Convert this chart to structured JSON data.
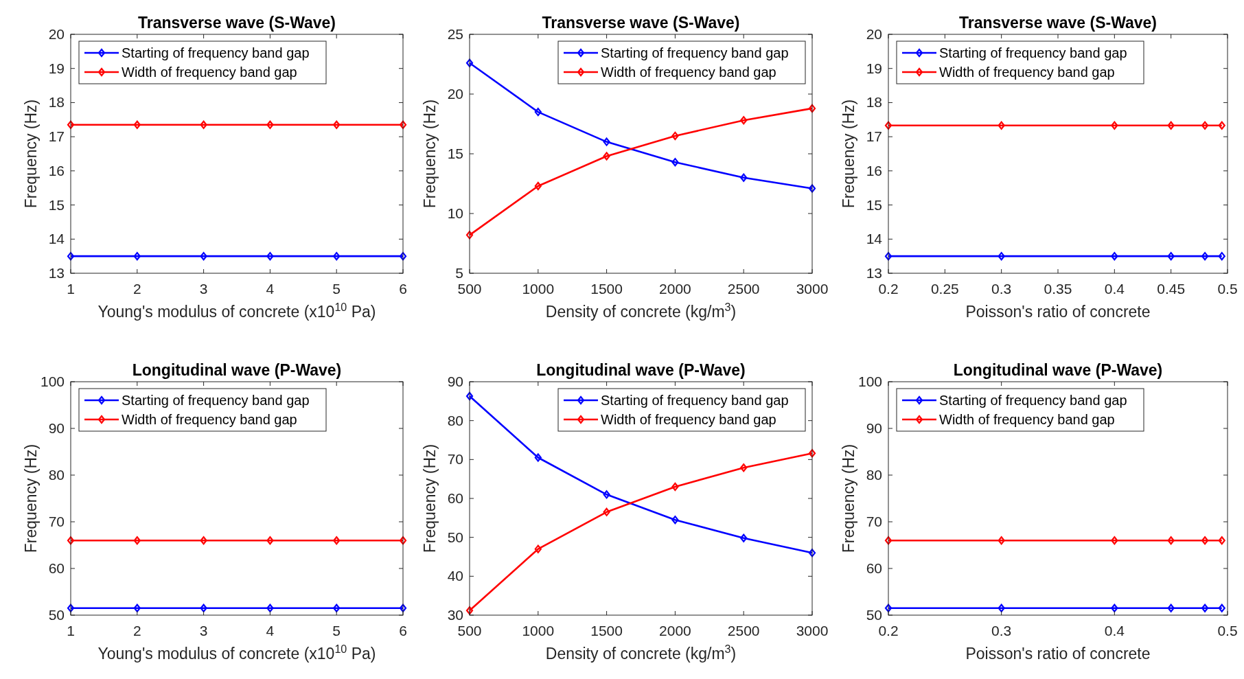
{
  "chart_data": [
    {
      "type": "line",
      "title": "Transverse wave (S-Wave)",
      "xlabel": "Young's modulus of concrete (x10$^{10}$ Pa)",
      "ylabel": "Frequency (Hz)",
      "x": [
        1,
        2,
        3,
        4,
        5,
        6
      ],
      "xlim": [
        1,
        6
      ],
      "xticks": [
        1,
        2,
        3,
        4,
        5,
        6
      ],
      "ylim": [
        13,
        20
      ],
      "yticks": [
        13,
        14,
        15,
        16,
        17,
        18,
        19,
        20
      ],
      "marker": "diamond",
      "grid": false,
      "legend": "top left",
      "series": [
        {
          "name": "Starting of frequency band gap",
          "color": "#0000ff",
          "values": [
            13.5,
            13.5,
            13.5,
            13.5,
            13.5,
            13.5
          ]
        },
        {
          "name": "Width of frequency band gap",
          "color": "#ff0000",
          "values": [
            17.35,
            17.35,
            17.35,
            17.35,
            17.35,
            17.35
          ]
        }
      ]
    },
    {
      "type": "line",
      "title": "Transverse wave (S-Wave)",
      "xlabel": "Density of concrete (kg/m$^{3}$)",
      "ylabel": "Frequency (Hz)",
      "x": [
        500,
        1000,
        1500,
        2000,
        2500,
        3000
      ],
      "xlim": [
        500,
        3000
      ],
      "xticks": [
        500,
        1000,
        1500,
        2000,
        2500,
        3000
      ],
      "ylim": [
        5,
        25
      ],
      "yticks": [
        5,
        10,
        15,
        20,
        25
      ],
      "marker": "diamond",
      "grid": false,
      "legend": "top right",
      "series": [
        {
          "name": "Starting of frequency band gap",
          "color": "#0000ff",
          "values": [
            22.6,
            18.5,
            16.0,
            14.3,
            13.0,
            12.1
          ]
        },
        {
          "name": "Width of frequency band gap",
          "color": "#ff0000",
          "values": [
            8.2,
            12.3,
            14.8,
            16.5,
            17.8,
            18.8
          ]
        }
      ]
    },
    {
      "type": "line",
      "title": "Transverse wave (S-Wave)",
      "xlabel": "Poisson's ratio of concrete",
      "ylabel": "Frequency (Hz)",
      "x": [
        0.2,
        0.3,
        0.4,
        0.45,
        0.48,
        0.495
      ],
      "xlim": [
        0.2,
        0.5
      ],
      "xticks": [
        0.2,
        0.25,
        0.3,
        0.35,
        0.4,
        0.45,
        0.5
      ],
      "ylim": [
        13,
        20
      ],
      "yticks": [
        13,
        14,
        15,
        16,
        17,
        18,
        19,
        20
      ],
      "marker": "diamond",
      "grid": false,
      "legend": "top left",
      "series": [
        {
          "name": "Starting of frequency band gap",
          "color": "#0000ff",
          "values": [
            13.5,
            13.5,
            13.5,
            13.5,
            13.5,
            13.5
          ]
        },
        {
          "name": "Width of frequency band gap",
          "color": "#ff0000",
          "values": [
            17.33,
            17.33,
            17.33,
            17.33,
            17.33,
            17.33
          ]
        }
      ]
    },
    {
      "type": "line",
      "title": "Longitudinal wave (P-Wave)",
      "xlabel": "Young's modulus of concrete (x10$^{10}$ Pa)",
      "ylabel": "Frequency (Hz)",
      "x": [
        1,
        2,
        3,
        4,
        5,
        6
      ],
      "xlim": [
        1,
        6
      ],
      "xticks": [
        1,
        2,
        3,
        4,
        5,
        6
      ],
      "ylim": [
        50,
        100
      ],
      "yticks": [
        50,
        60,
        70,
        80,
        90,
        100
      ],
      "marker": "diamond",
      "grid": false,
      "legend": "top left",
      "series": [
        {
          "name": "Starting of frequency band gap",
          "color": "#0000ff",
          "values": [
            51.5,
            51.5,
            51.5,
            51.5,
            51.5,
            51.5
          ]
        },
        {
          "name": "Width of frequency band gap",
          "color": "#ff0000",
          "values": [
            66,
            66,
            66,
            66,
            66,
            66
          ]
        }
      ]
    },
    {
      "type": "line",
      "title": "Longitudinal wave (P-Wave)",
      "xlabel": "Density of concrete (kg/m$^{3}$)",
      "ylabel": "Frequency (Hz)",
      "x": [
        500,
        1000,
        1500,
        2000,
        2500,
        3000
      ],
      "xlim": [
        500,
        3000
      ],
      "xticks": [
        500,
        1000,
        1500,
        2000,
        2500,
        3000
      ],
      "ylim": [
        30,
        90
      ],
      "yticks": [
        30,
        40,
        50,
        60,
        70,
        80,
        90
      ],
      "marker": "diamond",
      "grid": false,
      "legend": "top right",
      "series": [
        {
          "name": "Starting of frequency band gap",
          "color": "#0000ff",
          "values": [
            86.3,
            70.5,
            61.0,
            54.5,
            49.8,
            46.0
          ]
        },
        {
          "name": "Width of frequency band gap",
          "color": "#ff0000",
          "values": [
            31.2,
            47.0,
            56.5,
            63.0,
            67.9,
            71.6
          ]
        }
      ]
    },
    {
      "type": "line",
      "title": "Longitudinal wave (P-Wave)",
      "xlabel": "Poisson's ratio of concrete",
      "ylabel": "Frequency (Hz)",
      "x": [
        0.2,
        0.3,
        0.4,
        0.45,
        0.48,
        0.495
      ],
      "xlim": [
        0.2,
        0.5
      ],
      "xticks": [
        0.2,
        0.3,
        0.4,
        0.5
      ],
      "ylim": [
        50,
        100
      ],
      "yticks": [
        50,
        60,
        70,
        80,
        90,
        100
      ],
      "marker": "diamond",
      "grid": false,
      "legend": "top left",
      "series": [
        {
          "name": "Starting of frequency band gap",
          "color": "#0000ff",
          "values": [
            51.5,
            51.5,
            51.5,
            51.5,
            51.5,
            51.5
          ]
        },
        {
          "name": "Width of frequency band gap",
          "color": "#ff0000",
          "values": [
            66,
            66,
            66,
            66,
            66,
            66
          ]
        }
      ]
    }
  ]
}
